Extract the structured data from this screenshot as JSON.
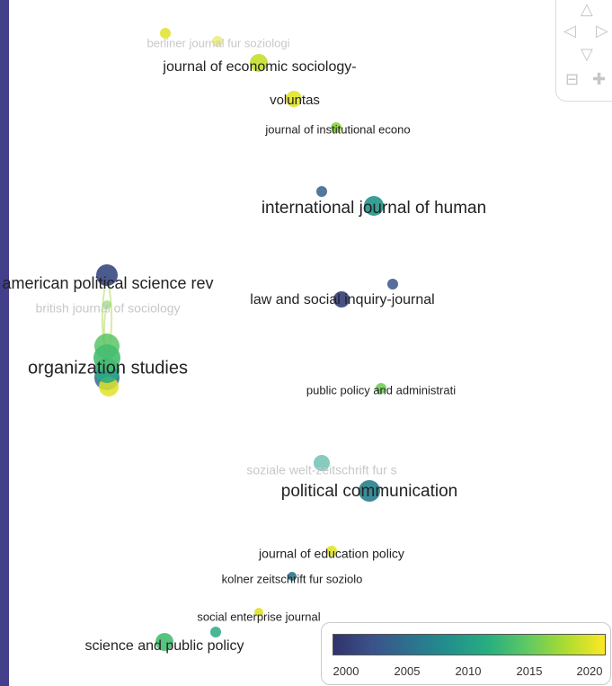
{
  "color_scale": {
    "title": "",
    "ticks": [
      "2000",
      "2005",
      "2010",
      "2015",
      "2020"
    ],
    "colors": [
      "#30336b",
      "#3b528b",
      "#2c728e",
      "#21918c",
      "#28ae80",
      "#5ec962",
      "#addc30",
      "#fde725"
    ]
  },
  "navigation": {
    "up_icon": "triangle-up",
    "left_icon": "triangle-left",
    "right_icon": "triangle-right",
    "down_icon": "triangle-down",
    "zoom_out_icon": "minus",
    "zoom_in_icon": "plus"
  },
  "nodes": [
    {
      "id": "berliner",
      "label": "berliner journal fur soziologi",
      "year": 2019,
      "faded": true
    },
    {
      "id": "jes",
      "label": "journal of economic sociology-",
      "year": 2018,
      "faded": false
    },
    {
      "id": "voluntas",
      "label": "voluntas",
      "year": 2019,
      "faded": false
    },
    {
      "id": "jie",
      "label": "journal of institutional econo",
      "year": 2016,
      "faded": false
    },
    {
      "id": "ijhrm",
      "label": "international journal of human",
      "year": 2009,
      "faded": false
    },
    {
      "id": "apsr",
      "label": "american political science rev",
      "year": 2002,
      "faded": false
    },
    {
      "id": "bjs",
      "label": "british journal of sociology",
      "year": 2015,
      "faded": true
    },
    {
      "id": "lsi",
      "label": "law and social inquiry-journal",
      "year": 2001,
      "faded": false
    },
    {
      "id": "orgstud",
      "label": "organization studies",
      "year": 2013,
      "faded": false
    },
    {
      "id": "ppa",
      "label": "public policy and administrati",
      "year": 2015,
      "faded": false
    },
    {
      "id": "swz",
      "label": "soziale welt-zeitschrift fur s",
      "year": 2010,
      "faded": true
    },
    {
      "id": "polcom",
      "label": "political communication",
      "year": 2007,
      "faded": false
    },
    {
      "id": "jep",
      "label": "journal of education policy",
      "year": 2019,
      "faded": false
    },
    {
      "id": "kzfss",
      "label": "kolner zeitschrift fur soziolo",
      "year": 2006,
      "faded": false
    },
    {
      "id": "sej",
      "label": "social enterprise journal",
      "year": 2019,
      "faded": false
    },
    {
      "id": "spp",
      "label": "science and public policy",
      "year": 2013,
      "faded": false
    }
  ]
}
